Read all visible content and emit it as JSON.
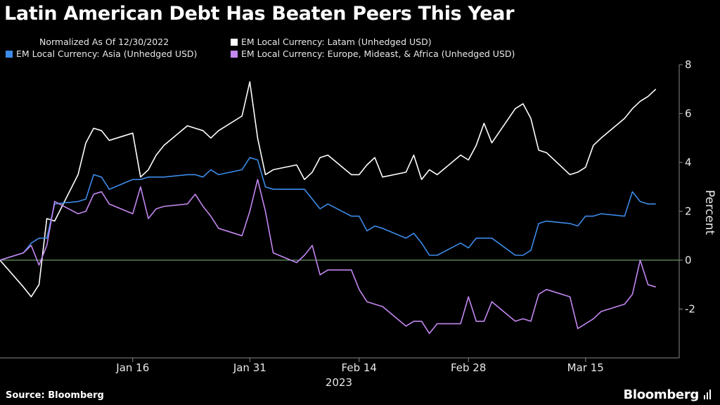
{
  "header": {
    "title": "Latin American Debt Has Beaten Peers This Year",
    "note": "Normalized As Of 12/30/2022"
  },
  "footer": {
    "source": "Source: Bloomberg",
    "brand": "Bloomberg"
  },
  "colors": {
    "background": "#000000",
    "latam": "#ffffff",
    "asia": "#3d8be8",
    "emea": "#c387f0",
    "zero_line": "#7dbf7d"
  },
  "chart_data": {
    "type": "line",
    "ylabel": "Percent",
    "ylim": [
      -4,
      8
    ],
    "yticks": [
      -2,
      0,
      2,
      4,
      6,
      8
    ],
    "x_start": "2022-12-30",
    "x_end": "2023-03-27",
    "xticks": [
      {
        "date": "2023-01-16",
        "label": "Jan 16"
      },
      {
        "date": "2023-01-31",
        "label": "Jan 31"
      },
      {
        "date": "2023-02-14",
        "label": "Feb 14"
      },
      {
        "date": "2023-02-28",
        "label": "Feb 28"
      },
      {
        "date": "2023-03-15",
        "label": "Mar 15"
      }
    ],
    "year_label": "2023",
    "legend_placement": "top",
    "grid": false,
    "x": [
      "2022-12-30",
      "2023-01-02",
      "2023-01-03",
      "2023-01-04",
      "2023-01-05",
      "2023-01-06",
      "2023-01-09",
      "2023-01-10",
      "2023-01-11",
      "2023-01-12",
      "2023-01-13",
      "2023-01-16",
      "2023-01-17",
      "2023-01-18",
      "2023-01-19",
      "2023-01-20",
      "2023-01-23",
      "2023-01-24",
      "2023-01-25",
      "2023-01-26",
      "2023-01-27",
      "2023-01-30",
      "2023-01-31",
      "2023-02-01",
      "2023-02-02",
      "2023-02-03",
      "2023-02-06",
      "2023-02-07",
      "2023-02-08",
      "2023-02-09",
      "2023-02-10",
      "2023-02-13",
      "2023-02-14",
      "2023-02-15",
      "2023-02-16",
      "2023-02-17",
      "2023-02-20",
      "2023-02-21",
      "2023-02-22",
      "2023-02-23",
      "2023-02-24",
      "2023-02-27",
      "2023-02-28",
      "2023-03-01",
      "2023-03-02",
      "2023-03-03",
      "2023-03-06",
      "2023-03-07",
      "2023-03-08",
      "2023-03-09",
      "2023-03-10",
      "2023-03-13",
      "2023-03-14",
      "2023-03-15",
      "2023-03-16",
      "2023-03-17",
      "2023-03-20",
      "2023-03-21",
      "2023-03-22",
      "2023-03-23",
      "2023-03-24"
    ],
    "series": [
      {
        "name": "EM Local Currency: Latam (Unhedged USD)",
        "color": "#ffffff",
        "values": [
          0,
          -1.1,
          -1.5,
          -1.0,
          1.7,
          1.6,
          3.5,
          4.8,
          5.4,
          5.3,
          4.9,
          5.2,
          3.4,
          3.7,
          4.3,
          4.7,
          5.5,
          5.4,
          5.3,
          5.0,
          5.3,
          5.9,
          7.3,
          5.0,
          3.5,
          3.7,
          3.9,
          3.3,
          3.6,
          4.2,
          4.3,
          3.5,
          3.5,
          3.9,
          4.2,
          3.4,
          3.6,
          4.3,
          3.3,
          3.7,
          3.5,
          4.3,
          4.1,
          4.7,
          5.6,
          4.8,
          6.2,
          6.4,
          5.8,
          4.5,
          4.4,
          3.5,
          3.6,
          3.8,
          4.7,
          5.0,
          5.8,
          6.2,
          6.5,
          6.7,
          7.0
        ]
      },
      {
        "name": "EM Local Currency: Asia (Unhedged USD)",
        "color": "#3d8be8",
        "values": [
          0,
          0.3,
          0.7,
          0.9,
          0.9,
          2.3,
          2.4,
          2.5,
          3.5,
          3.4,
          2.9,
          3.3,
          3.3,
          3.4,
          3.4,
          3.4,
          3.5,
          3.5,
          3.4,
          3.7,
          3.5,
          3.7,
          4.2,
          4.1,
          3.0,
          2.9,
          2.9,
          2.9,
          2.5,
          2.1,
          2.3,
          1.8,
          1.8,
          1.2,
          1.4,
          1.3,
          0.9,
          1.1,
          0.7,
          0.2,
          0.2,
          0.7,
          0.5,
          0.9,
          0.9,
          0.9,
          0.2,
          0.2,
          0.4,
          1.5,
          1.6,
          1.5,
          1.4,
          1.8,
          1.8,
          1.9,
          1.8,
          2.8,
          2.4,
          2.3,
          2.3
        ]
      },
      {
        "name": "EM Local Currency: Europe, Mideast, & Africa (Unhedged USD)",
        "color": "#c387f0",
        "values": [
          0,
          0.3,
          0.6,
          -0.2,
          0.6,
          2.4,
          1.9,
          2.0,
          2.7,
          2.8,
          2.3,
          1.9,
          3.0,
          1.7,
          2.1,
          2.2,
          2.3,
          2.7,
          2.2,
          1.8,
          1.3,
          1.0,
          2.0,
          3.3,
          2.0,
          0.3,
          -0.1,
          0.2,
          0.6,
          -0.6,
          -0.4,
          -0.4,
          -1.2,
          -1.7,
          -1.8,
          -1.9,
          -2.7,
          -2.5,
          -2.5,
          -3.0,
          -2.6,
          -2.6,
          -1.5,
          -2.5,
          -2.5,
          -1.7,
          -2.5,
          -2.4,
          -2.5,
          -1.4,
          -1.2,
          -1.5,
          -2.8,
          -2.6,
          -2.4,
          -2.1,
          -1.8,
          -1.4,
          0,
          -1.0,
          -1.1
        ]
      }
    ]
  }
}
